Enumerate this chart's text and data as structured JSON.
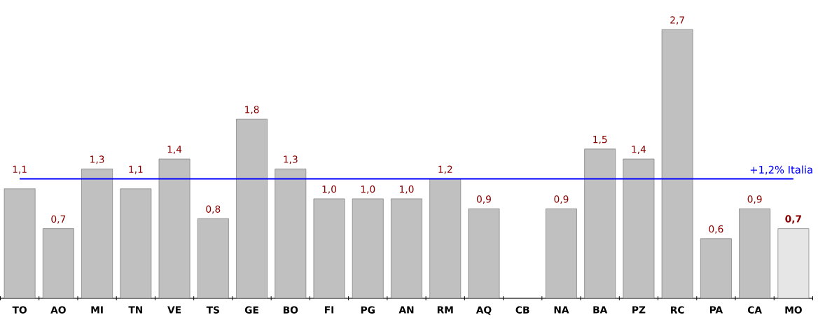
{
  "chart_data": {
    "type": "bar",
    "categories": [
      "TO",
      "AO",
      "MI",
      "TN",
      "VE",
      "TS",
      "GE",
      "BO",
      "FI",
      "PG",
      "AN",
      "RM",
      "AQ",
      "CB",
      "NA",
      "BA",
      "PZ",
      "RC",
      "PA",
      "CA",
      "MO"
    ],
    "values": [
      1.1,
      0.7,
      1.3,
      1.1,
      1.4,
      0.8,
      1.8,
      1.3,
      1.0,
      1.0,
      1.0,
      1.2,
      0.9,
      null,
      0.9,
      1.5,
      1.4,
      2.7,
      0.6,
      0.9,
      0.7
    ],
    "value_labels": [
      "1,1",
      "0,7",
      "1,3",
      "1,1",
      "1,4",
      "0,8",
      "1,8",
      "1,3",
      "1,0",
      "1,0",
      "1,0",
      "1,2",
      "0,9",
      null,
      "0,9",
      "1,5",
      "1,4",
      "2,7",
      "0,6",
      "0,9",
      "**0,7**"
    ],
    "colors": [
      "#c0c0c0",
      "#c0c0c0",
      "#c0c0c0",
      "#c0c0c0",
      "#c0c0c0",
      "#c0c0c0",
      "#c0c0c0",
      "#c0c0c0",
      "#c0c0c0",
      "#c0c0c0",
      "#c0c0c0",
      "#c0c0c0",
      "#c0c0c0",
      "#c0c0c0",
      "#c0c0c0",
      "#c0c0c0",
      "#c0c0c0",
      "#c0c0c0",
      "#c0c0c0",
      "#c0c0c0",
      "#e6e6e6"
    ],
    "ref_lines": [
      {
        "axis": "y",
        "value": 1.2,
        "label": "+1,2% Italia",
        "color": "#0000ff",
        "line_style": "solid"
      }
    ]
  }
}
